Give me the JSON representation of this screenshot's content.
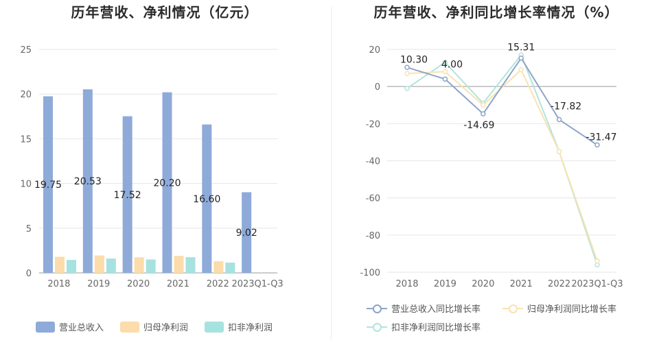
{
  "chart_data": [
    {
      "type": "bar",
      "title": "历年营收、净利情况（亿元）",
      "categories": [
        "2018",
        "2019",
        "2020",
        "2021",
        "2022",
        "2023Q1-Q3"
      ],
      "ylim": [
        0,
        25
      ],
      "yticks": [
        0,
        5,
        10,
        15,
        20,
        25
      ],
      "series": [
        {
          "name": "营业总收入",
          "color": "#8eaad9",
          "values": [
            19.75,
            20.53,
            17.52,
            20.2,
            16.6,
            9.02
          ],
          "labels": [
            "19.75",
            "20.53",
            "17.52",
            "20.20",
            "16.60",
            "9.02"
          ]
        },
        {
          "name": "归母净利润",
          "color": "#fbdcaa",
          "values": [
            1.8,
            1.95,
            1.75,
            1.9,
            1.3,
            null
          ]
        },
        {
          "name": "扣非净利润",
          "color": "#a6e2e0",
          "values": [
            1.45,
            1.6,
            1.5,
            1.75,
            1.15,
            null
          ]
        }
      ],
      "legend_position": "bottom"
    },
    {
      "type": "line",
      "title": "历年营收、净利同比增长率情况（%）",
      "categories": [
        "2018",
        "2019",
        "2020",
        "2021",
        "2022",
        "2023Q1-Q3"
      ],
      "ylim": [
        -100,
        20
      ],
      "yticks": [
        20,
        0,
        -20,
        -40,
        -60,
        -80,
        -100
      ],
      "series": [
        {
          "name": "营业总收入同比增长率",
          "color": "#8da4c8",
          "values": [
            10.3,
            4.0,
            -14.69,
            15.31,
            -17.82,
            -31.47
          ],
          "labels": [
            "10.30",
            "4.00",
            "-14.69",
            "15.31",
            "-17.82",
            "-31.47"
          ]
        },
        {
          "name": "归母净利润同比增长率",
          "color": "#f7e3b0",
          "values": [
            7,
            8,
            -10,
            9,
            -35,
            -94
          ]
        },
        {
          "name": "扣非净利润同比增长率",
          "color": "#b2e4dc",
          "values": [
            -1,
            13,
            -9,
            17,
            -35,
            -96
          ]
        }
      ],
      "legend_position": "bottom"
    }
  ]
}
